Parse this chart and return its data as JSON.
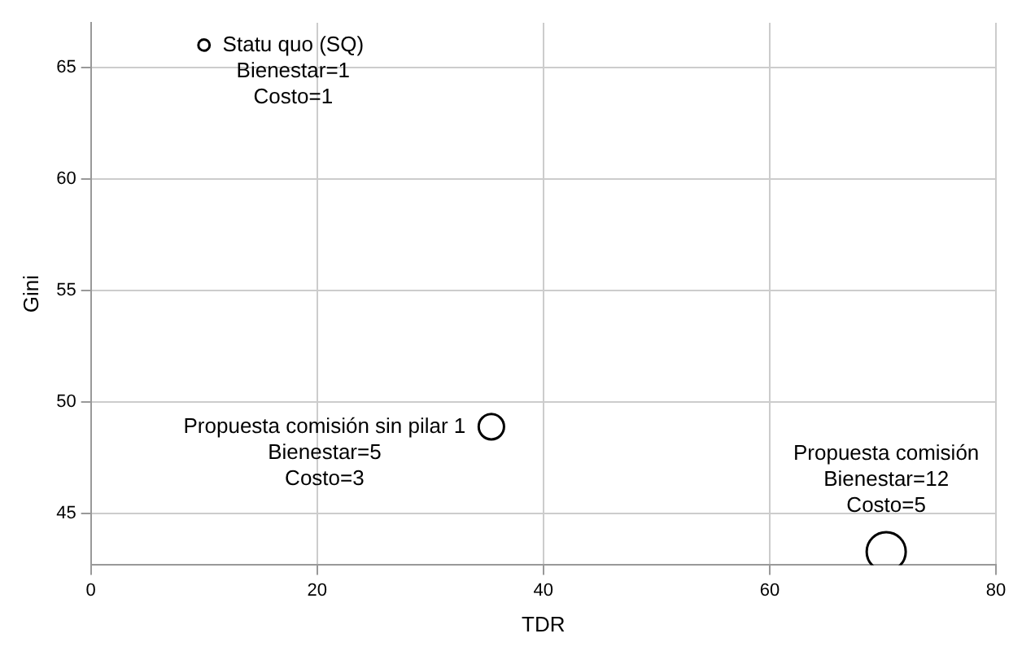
{
  "chart_data": {
    "type": "bubble",
    "xlabel": "TDR",
    "ylabel": "Gini",
    "xlim": [
      0,
      80
    ],
    "xticks": [
      0,
      20,
      40,
      60,
      80
    ],
    "ylim": [
      42.7,
      67
    ],
    "yticks": [
      45,
      50,
      55,
      60,
      65
    ],
    "grid": true,
    "x": [
      10,
      35.4,
      70.3
    ],
    "series": [
      {
        "color": "#000000",
        "values": [
          66,
          48.9,
          43.3
        ],
        "sizes": [
          0.083,
          0.42,
          1
        ]
      }
    ],
    "annotations": [
      {
        "text": "Statu quo (SQ)\nBienestar=1\nCosto=1",
        "x": 10,
        "y": 66
      },
      {
        "text": "Propuesta comisión sin pilar 1\nBienestar=5\nCosto=3",
        "x": 35.4,
        "y": 48.9
      },
      {
        "text": "Propuesta comisión\nBienestar=12\nCosto=5",
        "x": 70.3,
        "y": 43.3
      }
    ]
  }
}
